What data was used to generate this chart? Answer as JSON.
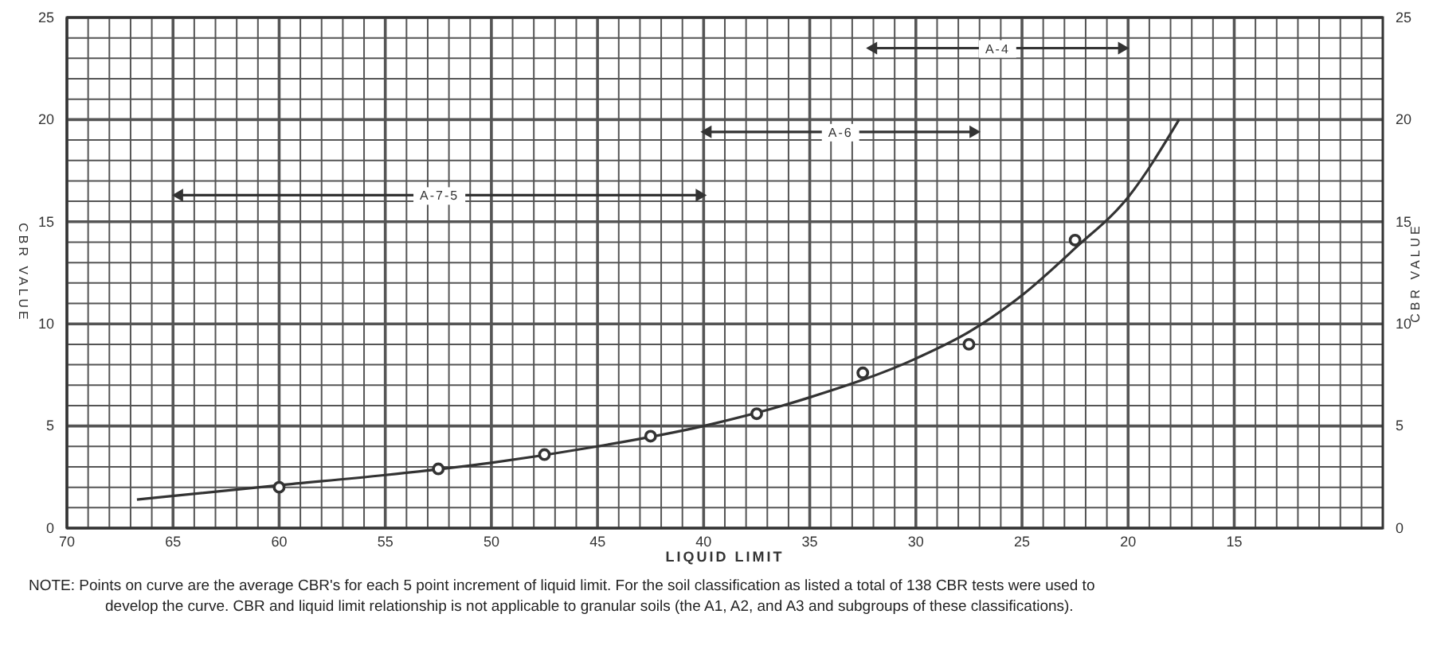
{
  "chart_data": {
    "type": "line",
    "xlabel": "LIQUID LIMIT",
    "ylabel": "CBR VALUE",
    "y2label": "CBR VALUE",
    "xlim": [
      70,
      8
    ],
    "xticks": [
      70,
      65,
      60,
      55,
      50,
      45,
      40,
      35,
      30,
      25,
      20,
      15
    ],
    "ylim": [
      0,
      25
    ],
    "yticks": [
      0,
      5,
      10,
      15,
      20,
      25
    ],
    "y2lim": [
      0,
      25
    ],
    "y2ticks": [
      0,
      5,
      10,
      15,
      20,
      25
    ],
    "grid": true,
    "series": [
      {
        "type": "line",
        "color": "#333333",
        "marker": "none",
        "x": [
          66.7,
          60,
          55,
          50,
          45,
          40,
          35,
          30,
          27.5,
          25,
          22.5,
          20,
          17.6
        ],
        "values": [
          1.4,
          2.1,
          2.6,
          3.2,
          4.0,
          5.0,
          6.4,
          8.3,
          9.6,
          11.4,
          13.7,
          16.2,
          20
        ]
      },
      {
        "type": "scatter",
        "color": "#333333",
        "marker": "circle",
        "x": [
          60,
          52.5,
          47.5,
          42.5,
          37.5,
          32.5,
          27.5,
          22.5
        ],
        "values": [
          2.0,
          2.9,
          3.6,
          4.5,
          5.6,
          7.6,
          9.0,
          14.1
        ]
      },
      {
        "color": "#333333",
        "marker": "triangle",
        "x": [
          32,
          20.3
        ],
        "values": [
          23.5,
          23.5
        ]
      },
      {
        "color": "#333333",
        "marker": "triangle",
        "x": [
          39.8,
          27.3
        ],
        "values": [
          19.4,
          19.4
        ]
      },
      {
        "color": "#333333",
        "marker": "triangle",
        "x": [
          64.7,
          40.2
        ],
        "values": [
          16.3,
          16.3
        ]
      }
    ],
    "annotations": [
      {
        "text": "A-4",
        "x": 26.15,
        "y": 23.5
      },
      {
        "text": "A-6",
        "x": 33.55,
        "y": 19.4
      },
      {
        "text": "A-7-5",
        "x": 52.45,
        "y": 16.3
      },
      "NOTE:  Points on curve are the average CBR's for each 5 point increment of liquid limit.  For the soil classification as listed a total of 138 CBR tests were used to develop the curve.  CBR and liquid limit relationship is not applicable to granular soils (the A1, A2, and A3 and subgroups of these classifications)."
    ]
  }
}
